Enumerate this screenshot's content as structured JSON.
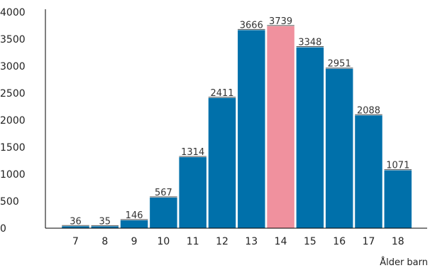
{
  "chart_data": {
    "type": "bar",
    "categories": [
      "7",
      "8",
      "9",
      "10",
      "11",
      "12",
      "13",
      "14",
      "15",
      "16",
      "17",
      "18"
    ],
    "values": [
      36,
      35,
      146,
      567,
      1314,
      2411,
      3666,
      3739,
      3348,
      2951,
      2088,
      1071
    ],
    "data_labels": [
      "36",
      "35",
      "146",
      "567",
      "1314",
      "2411",
      "3666",
      "3739",
      "3348",
      "2951",
      "2088",
      "1071"
    ],
    "title": "",
    "xlabel": "Ålder barn",
    "ylabel": "",
    "ylim": [
      0,
      4000
    ],
    "yticks": [
      "0",
      "500",
      "1000",
      "1500",
      "2000",
      "2500",
      "3000",
      "3500",
      "4000"
    ],
    "ytick_values": [
      0,
      500,
      1000,
      1500,
      2000,
      2500,
      3000,
      3500,
      4000
    ],
    "grid": false,
    "legend": "none",
    "colors": {
      "bar": "#0070AA",
      "highlight": "#F0919E",
      "highlight_category": "14"
    }
  }
}
